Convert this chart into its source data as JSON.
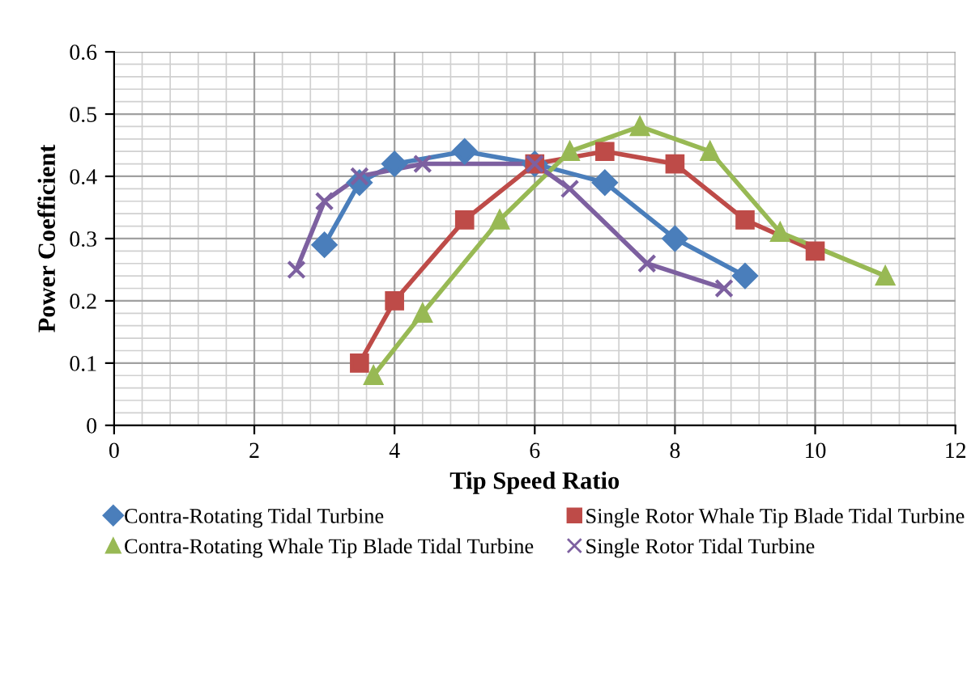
{
  "chart_data": {
    "type": "line",
    "xlabel": "Tip Speed Ratio",
    "ylabel": "Power Coefficient",
    "xlim": [
      0,
      12
    ],
    "xticks": [
      0,
      2,
      4,
      6,
      8,
      10,
      12
    ],
    "ylim": [
      0,
      0.6
    ],
    "yticks": [
      0,
      0.1,
      0.2,
      0.3,
      0.4,
      0.5,
      0.6
    ],
    "grid": true,
    "legend": "bottom",
    "series": [
      {
        "name": "Contra-Rotating Tidal Turbine",
        "color": "#4a7ebb",
        "marker": "diamond",
        "x": [
          3,
          3.5,
          4,
          5,
          6,
          7,
          8,
          9
        ],
        "values": [
          0.29,
          0.39,
          0.42,
          0.44,
          0.42,
          0.39,
          0.3,
          0.24
        ]
      },
      {
        "name": "Single Rotor Whale Tip Blade Tidal Turbine",
        "color": "#be4b48",
        "marker": "square",
        "x": [
          3.5,
          4,
          5,
          6,
          7,
          8,
          9,
          10
        ],
        "values": [
          0.1,
          0.2,
          0.33,
          0.42,
          0.44,
          0.42,
          0.33,
          0.28
        ]
      },
      {
        "name": "Contra-Rotating Whale Tip Blade Tidal Turbine",
        "color": "#98b954",
        "marker": "triangle",
        "x": [
          3.7,
          4.4,
          5.5,
          6.5,
          7.5,
          8.5,
          9.5,
          11
        ],
        "values": [
          0.08,
          0.18,
          0.33,
          0.44,
          0.48,
          0.44,
          0.31,
          0.24
        ]
      },
      {
        "name": "Single Rotor Tidal Turbine",
        "color": "#7d60a0",
        "marker": "cross",
        "x": [
          2.6,
          3,
          3.5,
          4.4,
          6,
          6.5,
          7.6,
          8.7
        ],
        "values": [
          0.25,
          0.36,
          0.4,
          0.42,
          0.42,
          0.38,
          0.26,
          0.22
        ]
      }
    ]
  }
}
